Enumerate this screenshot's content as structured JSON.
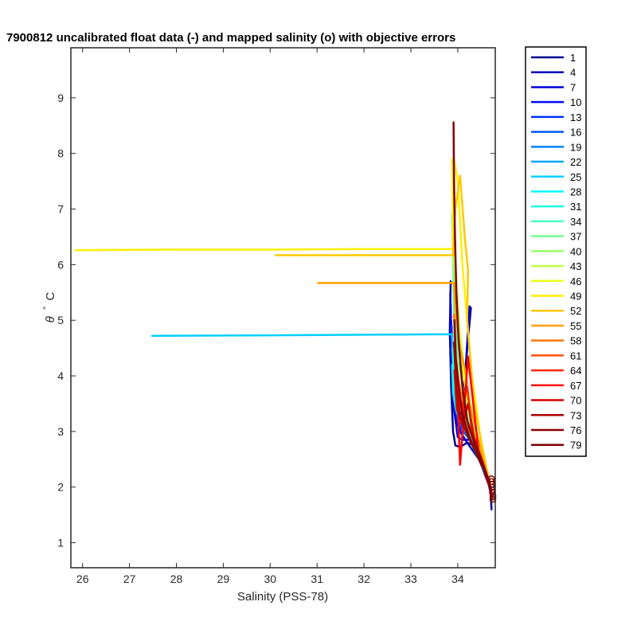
{
  "chart_data": {
    "type": "line",
    "title": "7900812 uncalibrated float data (-) and mapped salinity (o) with objective errors",
    "xlabel": "Salinity (PSS-78)",
    "ylabel_symbol": "θ",
    "ylabel_unit": "C",
    "xlim": [
      25.75,
      34.8
    ],
    "ylim": [
      0.55,
      9.9
    ],
    "xticks": [
      26,
      27,
      28,
      29,
      30,
      31,
      32,
      33,
      34
    ],
    "yticks": [
      1,
      2,
      3,
      4,
      5,
      6,
      7,
      8,
      9
    ],
    "grid": false,
    "legend_position": "outside-right",
    "series": [
      {
        "name": "1",
        "color": "#000090",
        "x": [
          33.85,
          33.83,
          33.86,
          33.9,
          33.95,
          34.05,
          34.2,
          34.35,
          34.5,
          34.65,
          34.7,
          34.72
        ],
        "y": [
          5.7,
          4.8,
          3.8,
          3.0,
          2.75,
          2.72,
          2.8,
          2.75,
          2.45,
          2.15,
          1.95,
          1.6
        ]
      },
      {
        "name": "4",
        "color": "#0000B8",
        "x": [
          33.84,
          33.86,
          33.9,
          33.98,
          34.1,
          34.25,
          34.28,
          34.15,
          34.05,
          34.2,
          34.45,
          34.65,
          34.72
        ],
        "y": [
          5.5,
          4.6,
          3.6,
          3.1,
          3.2,
          5.25,
          5.22,
          4.0,
          3.0,
          2.8,
          2.5,
          2.1,
          1.8
        ]
      },
      {
        "name": "7",
        "color": "#0000DF",
        "x": [
          33.85,
          33.87,
          33.92,
          34.0,
          34.1,
          34.3,
          34.5,
          34.68
        ],
        "y": [
          5.3,
          4.3,
          3.4,
          2.9,
          2.85,
          2.85,
          2.4,
          2.0
        ]
      },
      {
        "name": "10",
        "color": "#0008FF",
        "x": [
          33.86,
          33.88,
          33.95,
          34.05,
          34.2,
          34.4,
          34.6,
          34.7
        ],
        "y": [
          5.0,
          4.2,
          3.5,
          3.0,
          2.95,
          2.7,
          2.3,
          1.9
        ]
      },
      {
        "name": "13",
        "color": "#0030FF",
        "x": [
          33.87,
          33.9,
          33.97,
          34.08,
          34.25,
          34.45,
          34.62,
          34.71
        ],
        "y": [
          4.9,
          4.0,
          3.3,
          3.05,
          2.9,
          2.6,
          2.25,
          1.95
        ]
      },
      {
        "name": "16",
        "color": "#0058FF",
        "x": [
          33.88,
          33.92,
          34.0,
          34.12,
          34.3,
          34.5,
          34.68
        ],
        "y": [
          4.6,
          3.8,
          3.2,
          3.0,
          2.8,
          2.45,
          2.05
        ]
      },
      {
        "name": "19",
        "color": "#0080FF",
        "x": [
          33.89,
          33.93,
          34.02,
          34.15,
          34.35,
          34.55,
          34.7
        ],
        "y": [
          4.5,
          3.7,
          3.3,
          3.1,
          2.75,
          2.35,
          2.0
        ]
      },
      {
        "name": "22",
        "color": "#00A8FF",
        "x": [
          33.9,
          33.95,
          34.05,
          34.2,
          34.4,
          34.6,
          34.7
        ],
        "y": [
          4.4,
          3.6,
          3.25,
          3.0,
          2.7,
          2.3,
          1.95
        ]
      },
      {
        "name": "25",
        "color": "#00D0FF",
        "x": [
          27.48,
          30.0,
          32.0,
          33.88,
          33.9,
          33.95,
          34.05,
          34.25,
          34.5,
          34.7
        ],
        "y": [
          4.72,
          4.73,
          4.74,
          4.75,
          4.3,
          3.7,
          3.3,
          3.0,
          2.5,
          2.0
        ]
      },
      {
        "name": "28",
        "color": "#00F8FF",
        "x": [
          33.88,
          33.9,
          33.96,
          34.05,
          34.2,
          34.45,
          34.68
        ],
        "y": [
          4.2,
          3.7,
          3.4,
          3.2,
          2.95,
          2.5,
          2.05
        ]
      },
      {
        "name": "31",
        "color": "#20FFDF",
        "x": [
          33.89,
          33.92,
          33.98,
          34.08,
          34.25,
          34.5,
          34.7
        ],
        "y": [
          4.5,
          3.9,
          3.5,
          3.2,
          2.9,
          2.45,
          2.0
        ]
      },
      {
        "name": "34",
        "color": "#48FFB8",
        "x": [
          33.9,
          33.93,
          34.0,
          34.1,
          34.3,
          34.55,
          34.7
        ],
        "y": [
          6.0,
          4.8,
          3.9,
          3.3,
          2.9,
          2.4,
          2.0
        ]
      },
      {
        "name": "37",
        "color": "#70FF90",
        "x": [
          33.88,
          33.92,
          34.0,
          34.15,
          34.3,
          34.55,
          34.7
        ],
        "y": [
          6.9,
          5.5,
          4.3,
          3.6,
          3.0,
          2.4,
          2.0
        ]
      },
      {
        "name": "40",
        "color": "#98FF68",
        "x": [
          33.89,
          33.93,
          34.02,
          34.18,
          34.35,
          34.6,
          34.7
        ],
        "y": [
          7.2,
          5.8,
          4.6,
          3.7,
          3.1,
          2.35,
          2.0
        ]
      },
      {
        "name": "43",
        "color": "#C0FF40",
        "x": [
          33.9,
          33.95,
          34.05,
          34.2,
          34.4,
          34.6,
          34.7
        ],
        "y": [
          7.5,
          6.0,
          4.7,
          3.8,
          3.0,
          2.3,
          1.95
        ]
      },
      {
        "name": "46",
        "color": "#E8FF18",
        "x": [
          33.88,
          33.9,
          33.98,
          34.1,
          34.25,
          34.5,
          34.7
        ],
        "y": [
          7.9,
          6.5,
          5.2,
          4.2,
          3.3,
          2.5,
          2.0
        ]
      },
      {
        "name": "49",
        "color": "#FFEF00",
        "x": [
          25.85,
          28.0,
          30.0,
          32.0,
          33.9,
          33.92,
          34.0,
          34.1,
          34.2,
          34.3,
          34.5,
          34.7
        ],
        "y": [
          6.26,
          6.27,
          6.27,
          6.28,
          6.28,
          7.9,
          7.5,
          6.0,
          5.0,
          4.0,
          2.8,
          2.0
        ]
      },
      {
        "name": "52",
        "color": "#FFC800",
        "x": [
          30.12,
          32.0,
          33.9,
          33.95,
          34.05,
          34.15,
          34.22,
          34.2,
          34.35,
          34.55,
          34.7
        ],
        "y": [
          6.17,
          6.17,
          6.17,
          7.0,
          7.6,
          6.5,
          5.9,
          5.0,
          3.5,
          2.6,
          2.0
        ]
      },
      {
        "name": "55",
        "color": "#FFA000",
        "x": [
          31.02,
          32.5,
          33.92,
          33.95,
          34.05,
          34.18,
          34.25,
          34.4,
          34.6,
          34.7
        ],
        "y": [
          5.67,
          5.67,
          5.67,
          5.2,
          4.5,
          4.0,
          3.5,
          3.0,
          2.3,
          2.0
        ]
      },
      {
        "name": "58",
        "color": "#FF7800",
        "x": [
          33.92,
          33.95,
          34.02,
          34.12,
          34.22,
          34.4,
          34.6,
          34.7
        ],
        "y": [
          5.1,
          4.4,
          3.9,
          3.5,
          3.1,
          2.7,
          2.25,
          1.95
        ]
      },
      {
        "name": "61",
        "color": "#FF5000",
        "x": [
          33.93,
          33.96,
          34.05,
          34.15,
          34.25,
          34.45,
          34.62,
          34.7
        ],
        "y": [
          4.8,
          4.1,
          3.6,
          3.3,
          3.05,
          2.6,
          2.2,
          1.95
        ]
      },
      {
        "name": "64",
        "color": "#FF2800",
        "x": [
          33.92,
          33.97,
          34.08,
          34.2,
          34.3,
          34.5,
          34.65,
          34.72
        ],
        "y": [
          4.6,
          3.9,
          3.4,
          3.8,
          3.0,
          2.5,
          2.15,
          1.9
        ]
      },
      {
        "name": "67",
        "color": "#FF0000",
        "x": [
          33.94,
          34.0,
          34.05,
          34.12,
          34.22,
          34.45,
          34.62,
          34.72
        ],
        "y": [
          4.3,
          3.5,
          2.4,
          3.2,
          4.35,
          2.6,
          2.2,
          1.9
        ]
      },
      {
        "name": "70",
        "color": "#D70000",
        "x": [
          33.93,
          33.98,
          34.1,
          34.22,
          34.35,
          34.55,
          34.7
        ],
        "y": [
          4.1,
          3.4,
          3.1,
          3.5,
          2.9,
          2.4,
          1.95
        ]
      },
      {
        "name": "73",
        "color": "#AF0000",
        "x": [
          33.92,
          33.97,
          34.05,
          34.15,
          34.28,
          34.5,
          34.68
        ],
        "y": [
          4.6,
          3.8,
          3.3,
          3.05,
          2.8,
          2.45,
          2.0
        ]
      },
      {
        "name": "76",
        "color": "#870000",
        "x": [
          33.93,
          33.96,
          34.02,
          34.1,
          34.25,
          34.45,
          34.65,
          34.72
        ],
        "y": [
          5.0,
          4.3,
          3.8,
          3.3,
          2.9,
          2.5,
          2.15,
          1.9
        ]
      },
      {
        "name": "79",
        "color": "#800000",
        "x": [
          33.91,
          33.92,
          33.94,
          33.97,
          34.02,
          34.1,
          34.2,
          34.35,
          34.5,
          34.65,
          34.72
        ],
        "y": [
          8.56,
          7.5,
          6.5,
          5.5,
          4.6,
          3.8,
          3.2,
          2.8,
          2.5,
          2.15,
          1.95
        ]
      }
    ],
    "mapped_salinity_markers": {
      "marker": "o",
      "color": "#800000",
      "x": [
        34.72,
        34.72,
        34.73,
        34.73,
        34.74,
        34.74,
        34.75,
        34.75,
        34.75
      ],
      "y": [
        2.15,
        2.1,
        2.05,
        2.0,
        1.95,
        1.9,
        1.85,
        1.82,
        1.78
      ]
    }
  }
}
